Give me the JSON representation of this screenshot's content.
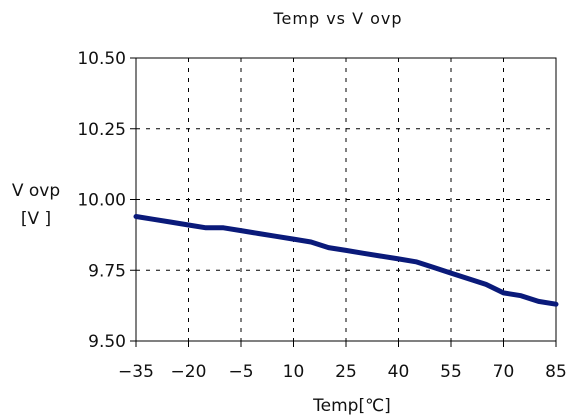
{
  "chart_data": {
    "type": "line",
    "title": "Temp vs V ovp",
    "xlabel": "Temp[℃]",
    "ylabel_lines": [
      "V ovp",
      "[V ]"
    ],
    "xlim": [
      -35,
      85
    ],
    "ylim": [
      9.5,
      10.5
    ],
    "x_ticks": [
      -35,
      -20,
      -5,
      10,
      25,
      40,
      55,
      70,
      85
    ],
    "x_tick_labels": [
      "−35",
      "−20",
      "−5",
      "10",
      "25",
      "40",
      "55",
      "70",
      "85"
    ],
    "y_ticks": [
      9.5,
      9.75,
      10.0,
      10.25,
      10.5
    ],
    "y_tick_labels": [
      "9.50",
      "9.75",
      "10.00",
      "10.25",
      "10.50"
    ],
    "grid": true,
    "legend": false,
    "series": [
      {
        "color": "#0a1a7a",
        "x": [
          -35,
          -30,
          -25,
          -20,
          -15,
          -10,
          -5,
          0,
          5,
          10,
          15,
          20,
          25,
          30,
          35,
          40,
          45,
          50,
          55,
          60,
          65,
          70,
          75,
          80,
          85
        ],
        "y": [
          9.94,
          9.93,
          9.92,
          9.91,
          9.9,
          9.9,
          9.89,
          9.88,
          9.87,
          9.86,
          9.85,
          9.83,
          9.82,
          9.81,
          9.8,
          9.79,
          9.78,
          9.76,
          9.74,
          9.72,
          9.7,
          9.67,
          9.66,
          9.64,
          9.63
        ]
      }
    ]
  }
}
